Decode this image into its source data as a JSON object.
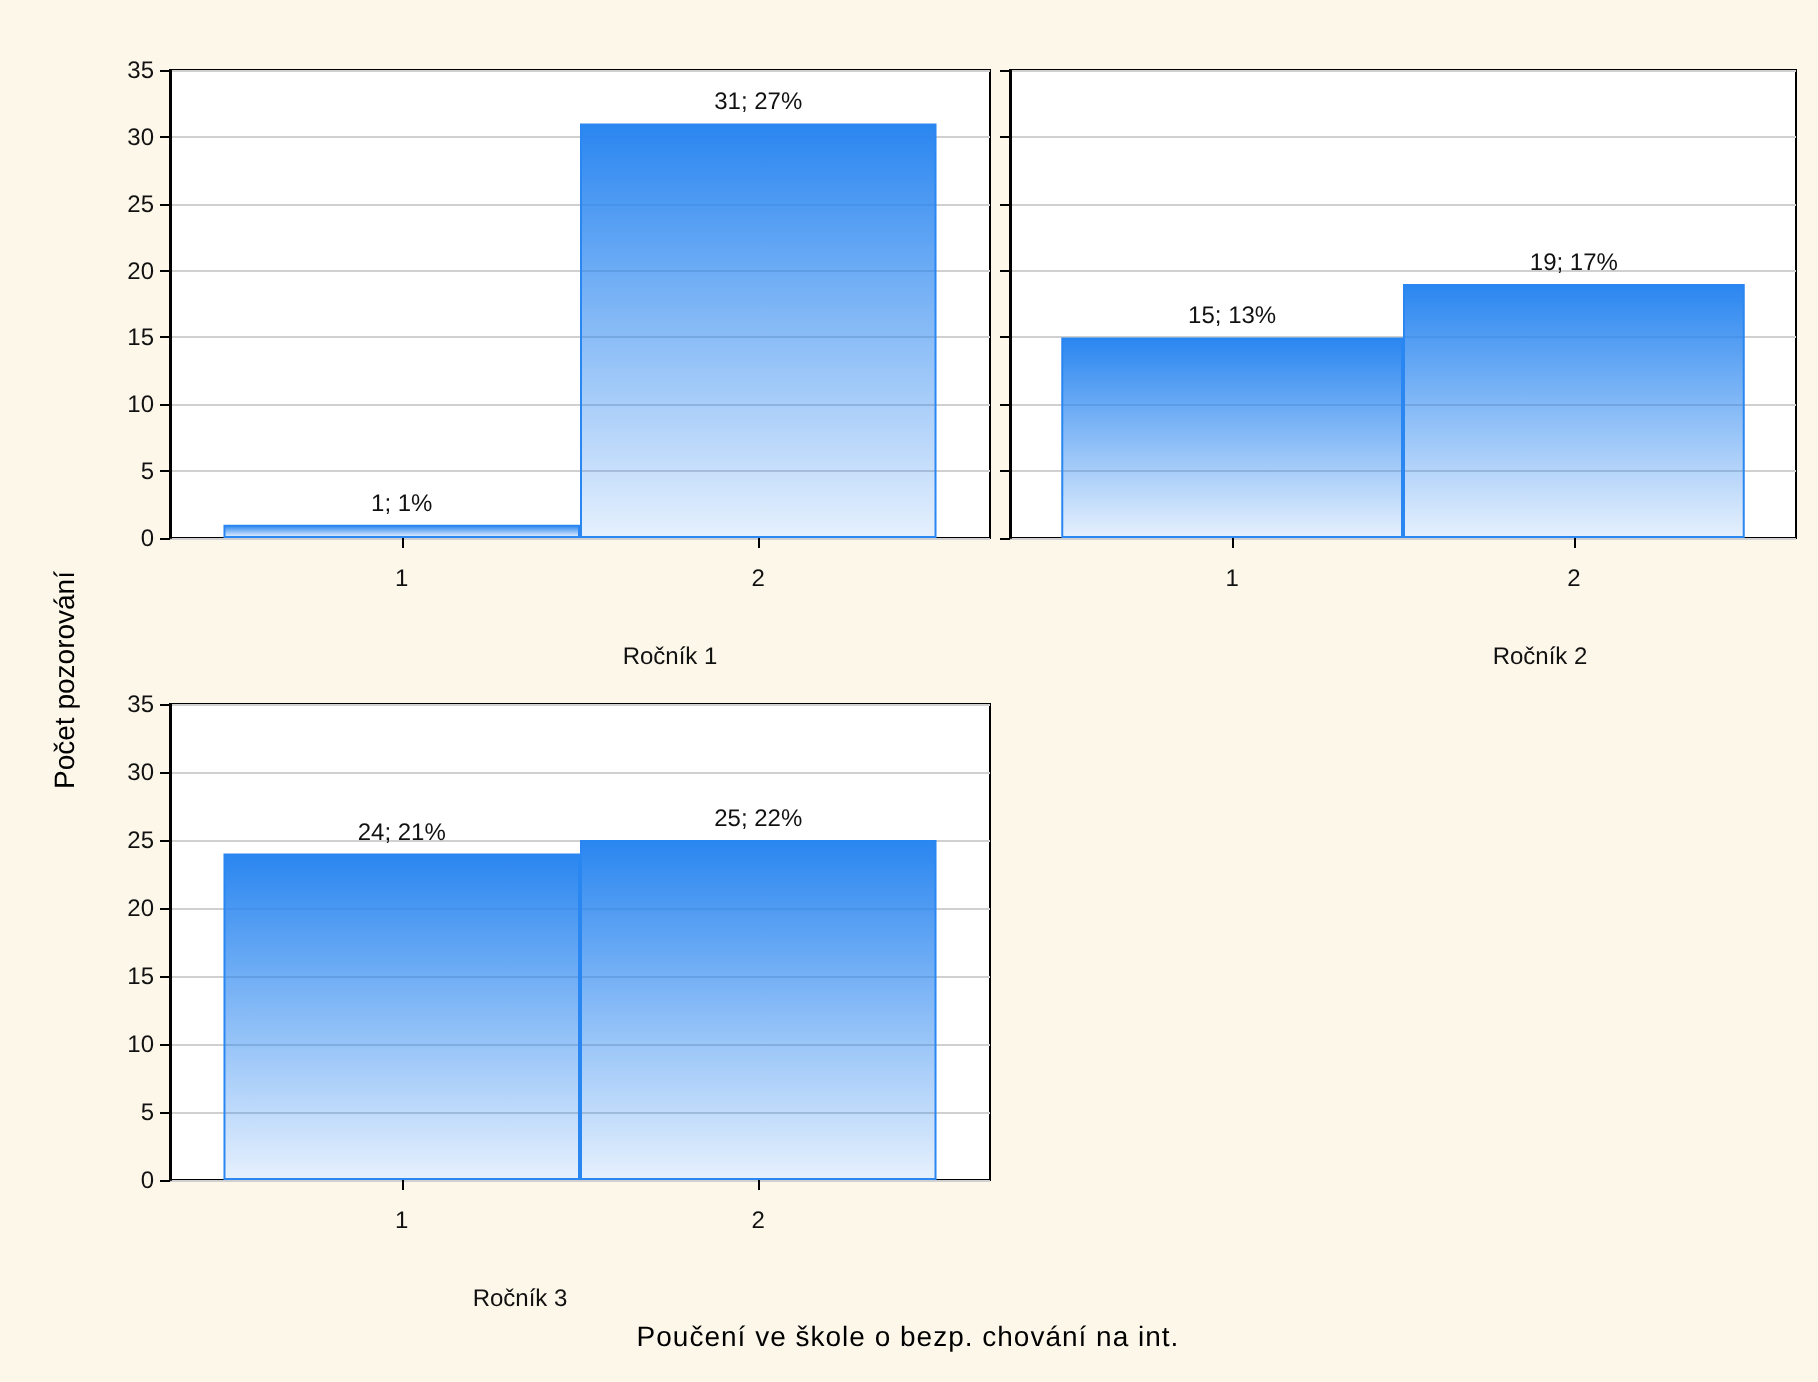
{
  "chart_data": [
    {
      "type": "bar",
      "title": "Ročník 1",
      "ylabel": "Počet pozorování",
      "categories": [
        "1",
        "2"
      ],
      "values": [
        1,
        31
      ],
      "value_labels": [
        "1; 1%",
        "31; 27%"
      ],
      "color": "#2a86f0",
      "ylim": [
        0,
        35
      ],
      "yticks": [
        0,
        5,
        10,
        15,
        20,
        25,
        30,
        35
      ],
      "grid": "y"
    },
    {
      "type": "bar",
      "title": "Ročník 2",
      "categories": [
        "1",
        "2"
      ],
      "values": [
        15,
        19
      ],
      "value_labels": [
        "15; 13%",
        "19; 17%"
      ],
      "color": "#2a86f0",
      "ylim": [
        0,
        35
      ],
      "yticks": [
        0,
        5,
        10,
        15,
        20,
        25,
        30,
        35
      ],
      "grid": "y",
      "tick_labels": "x"
    },
    {
      "type": "bar",
      "title": "Ročník 3",
      "xlabel": "Poučení ve škole o bezp. chování na int.",
      "categories": [
        "1",
        "2"
      ],
      "values": [
        24,
        25
      ],
      "value_labels": [
        "24; 21%",
        "25; 22%"
      ],
      "color": "#2a86f0",
      "ylim": [
        0,
        35
      ],
      "yticks": [
        0,
        5,
        10,
        15,
        20,
        25,
        30,
        35
      ],
      "grid": "y"
    }
  ]
}
